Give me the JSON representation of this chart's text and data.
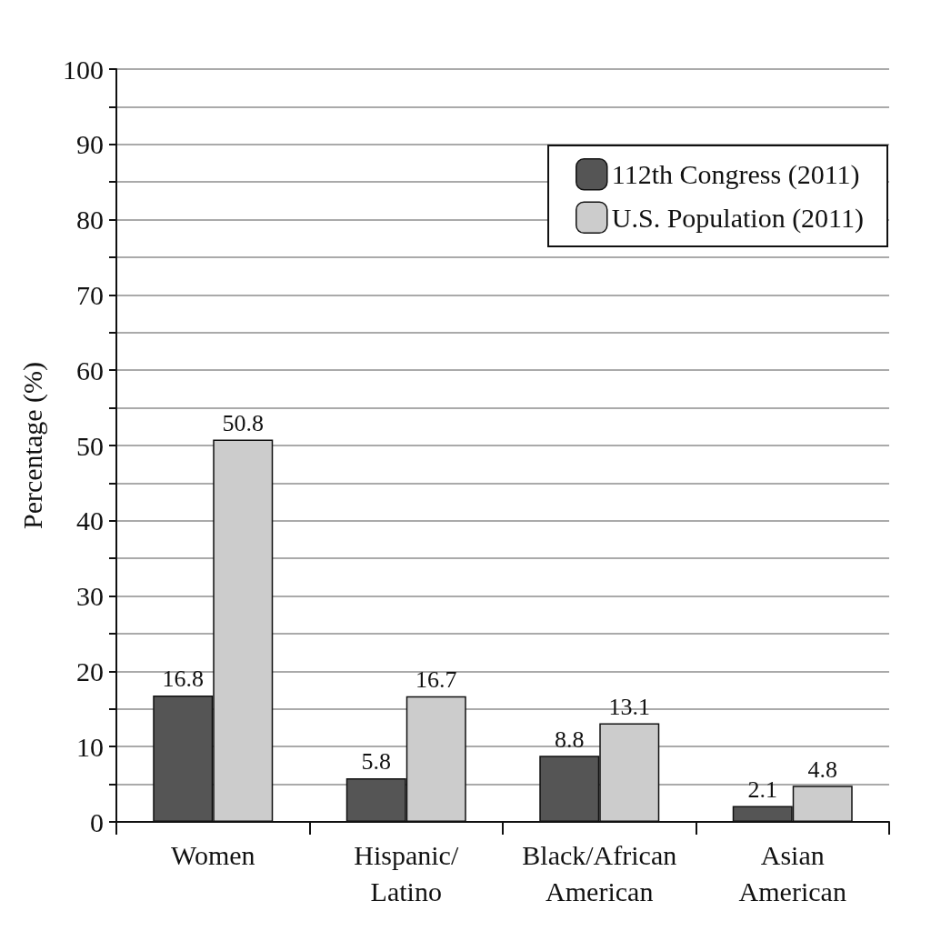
{
  "chart_data": {
    "type": "bar",
    "ylabel": "Percentage (%)",
    "categories": [
      "Women",
      "Hispanic/\nLatino",
      "Black/African\nAmerican",
      "Asian\nAmerican"
    ],
    "series": [
      {
        "name": "112th Congress (2011)",
        "color": "#555555",
        "values": [
          16.8,
          5.8,
          8.8,
          2.1
        ]
      },
      {
        "name": "U.S. Population (2011)",
        "color": "#cccccc",
        "values": [
          50.8,
          16.7,
          13.1,
          4.8
        ]
      }
    ],
    "ylim": [
      0,
      100
    ],
    "yticks": [
      0,
      {
        "value": 5,
        "label": null
      },
      10,
      {
        "value": 15,
        "label": null
      },
      20,
      {
        "value": 25,
        "label": null
      },
      30,
      {
        "value": 35,
        "label": null
      },
      40,
      {
        "value": 45,
        "label": null
      },
      50,
      {
        "value": 55,
        "label": null
      },
      60,
      {
        "value": 65,
        "label": null
      },
      70,
      {
        "value": 75,
        "label": null
      },
      80,
      {
        "value": 85,
        "label": null
      },
      90,
      {
        "value": 95,
        "label": null
      },
      100
    ],
    "grid": "y",
    "legend": "top right",
    "data_labels": true
  }
}
